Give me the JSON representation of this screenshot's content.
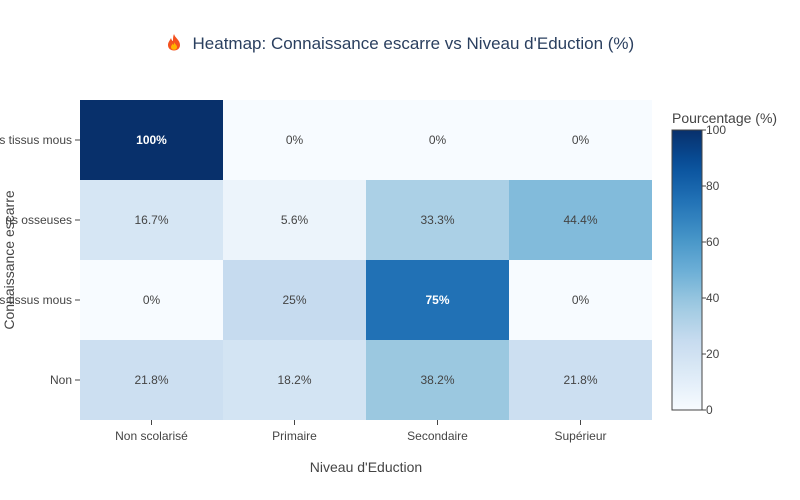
{
  "chart_data": {
    "type": "heatmap",
    "title": "Heatmap: Connaissance escarre vs Niveau d'Eduction (%)",
    "title_icon": "fire-icon",
    "xlabel": "Niveau d'Eduction",
    "ylabel": "Connaissance escarre",
    "x_categories": [
      "Non scolarisé",
      "Primaire",
      "Secondaire",
      "Supérieur"
    ],
    "y_categories": [
      "Non",
      "s tissus mous",
      "ns osseuses",
      "s tissus mous"
    ],
    "z": [
      [
        21.8,
        18.2,
        38.2,
        21.8
      ],
      [
        0,
        25,
        75,
        0
      ],
      [
        16.7,
        5.6,
        33.3,
        44.4
      ],
      [
        100,
        0,
        0,
        0
      ]
    ],
    "cell_labels": [
      [
        "21.8%",
        "18.2%",
        "38.2%",
        "21.8%"
      ],
      [
        "0%",
        "25%",
        "75%",
        "0%"
      ],
      [
        "16.7%",
        "5.6%",
        "33.3%",
        "44.4%"
      ],
      [
        "100%",
        "0%",
        "0%",
        "0%"
      ]
    ],
    "colorscale": "Blues",
    "colorbar": {
      "title": "Pourcentage (%)",
      "range": [
        0,
        100
      ],
      "ticks": [
        "0",
        "20",
        "40",
        "60",
        "80",
        "100"
      ]
    },
    "legend": "right",
    "grid": false
  }
}
